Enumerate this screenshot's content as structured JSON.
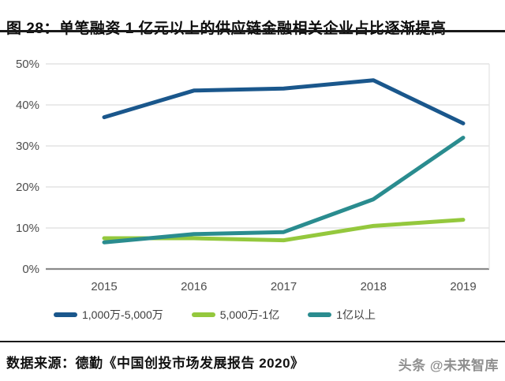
{
  "header": {
    "title": "图 28：单笔融资 1 亿元以上的供应链金融相关企业占比逐渐提高"
  },
  "footer": {
    "source": "数据来源：德勤《中国创投市场发展报告 2020》",
    "watermark": "头条 @未来智库"
  },
  "colors": {
    "series_blue": "#1A578C",
    "series_green": "#94C83D",
    "series_teal": "#2A8C8F",
    "gridline": "#e3e3e3",
    "axis": "#8a8a8a",
    "tick_text": "#4d4d4d"
  },
  "chart_data": {
    "type": "line",
    "title": "",
    "xlabel": "",
    "ylabel": "",
    "categories": [
      "2015",
      "2016",
      "2017",
      "2018",
      "2019"
    ],
    "series": [
      {
        "name": "1,000万-5,000万",
        "color": "#1A578C",
        "values": [
          37,
          43.5,
          44,
          46,
          35.5
        ]
      },
      {
        "name": "5,000万-1亿",
        "color": "#94C83D",
        "values": [
          7.5,
          7.5,
          7,
          10.5,
          12
        ]
      },
      {
        "name": "1亿以上",
        "color": "#2A8C8F",
        "values": [
          6.5,
          8.5,
          9,
          17,
          32
        ]
      }
    ],
    "ylim": [
      0,
      50
    ],
    "yticks": [
      0,
      10,
      20,
      30,
      40,
      50
    ],
    "ytick_suffix": "%",
    "grid": true,
    "legend_position": "bottom"
  }
}
